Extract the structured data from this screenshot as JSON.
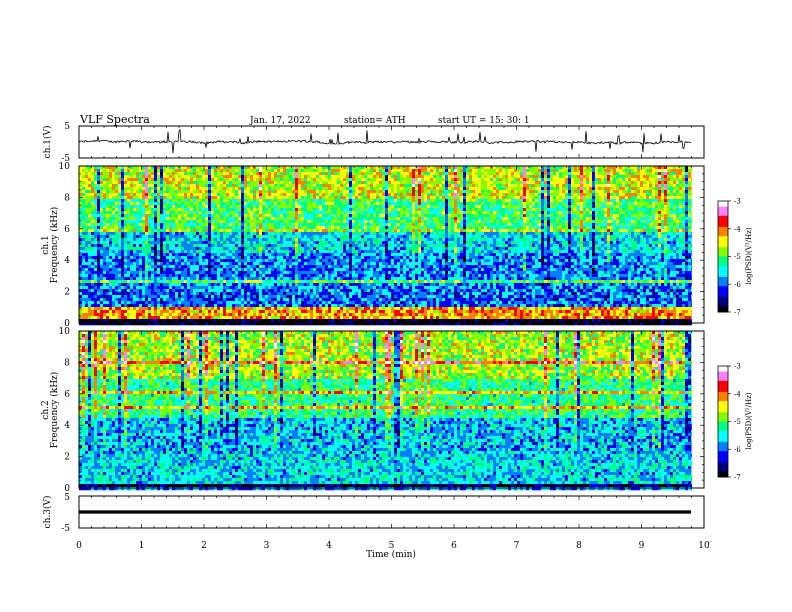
{
  "header": {
    "title": "VLF  Spectra",
    "date": "Jan. 17, 2022",
    "station": "station= ATH",
    "start": "start  UT  =    15: 30: 1"
  },
  "colors": {
    "colormap": [
      "#000000",
      "#00007f",
      "#0000ff",
      "#0080ff",
      "#00ffff",
      "#00ff80",
      "#80ff00",
      "#ffff00",
      "#ff8000",
      "#ff0000",
      "#ff80ff",
      "#ffffff"
    ]
  },
  "chart_data": [
    {
      "type": "line",
      "panel": "ch1-waveform",
      "ylabel": "ch.1(V)",
      "ylim": [
        -5,
        5
      ],
      "y_ticks": [
        "5",
        "-5"
      ],
      "x_range": [
        0,
        10
      ],
      "trace": "noisy waveform near 0 V (about -0.6 to +0.8 V) with frequent short positive and negative spikes",
      "data_end_min": 9.8
    },
    {
      "type": "heatmap",
      "panel": "ch1-spectrogram",
      "ylabel": "ch.1\nFrequency  (kHz)",
      "ylim": [
        0,
        10
      ],
      "y_ticks": [
        "0",
        "2",
        "4",
        "6",
        "8",
        "10"
      ],
      "x_range": [
        0,
        10
      ],
      "data_end_min": 9.8,
      "colorbar": {
        "label": "log(PSD)(V²/Hz)",
        "range": [
          -7,
          -3
        ],
        "ticks": [
          "-3",
          "-4",
          "-5",
          "-6",
          "-7"
        ]
      },
      "description_bands": [
        {
          "freq_khz": [
            0,
            0.4
          ],
          "logpsd": -6.9
        },
        {
          "freq_khz": [
            0.4,
            1.2
          ],
          "logpsd": -4.2
        },
        {
          "freq_khz": [
            1.2,
            2.2
          ],
          "logpsd": -6.0
        },
        {
          "freq_khz": [
            2.2,
            4.5
          ],
          "logpsd": -5.9
        },
        {
          "freq_khz": [
            4.5,
            6.0
          ],
          "logpsd": -5.6
        },
        {
          "freq_khz": [
            6.0,
            8.0
          ],
          "logpsd": -5.1
        },
        {
          "freq_khz": [
            8.0,
            10.0
          ],
          "logpsd": -4.6
        }
      ]
    },
    {
      "type": "heatmap",
      "panel": "ch2-spectrogram",
      "ylabel": "ch.2\nFrequency  (kHz)",
      "ylim": [
        0,
        10
      ],
      "y_ticks": [
        "0",
        "2",
        "4",
        "6",
        "8",
        "10"
      ],
      "x_range": [
        0,
        10
      ],
      "data_end_min": 9.8,
      "colorbar": {
        "label": "log(PSD)(V²/Hz)",
        "range": [
          -7,
          -3
        ],
        "ticks": [
          "-3",
          "-4",
          "-5",
          "-6",
          "-7"
        ]
      },
      "description_bands": [
        {
          "freq_khz": [
            0,
            0.3
          ],
          "logpsd": -6.8
        },
        {
          "freq_khz": [
            0.3,
            2.2
          ],
          "logpsd": -5.6
        },
        {
          "freq_khz": [
            2.2,
            4.5
          ],
          "logpsd": -5.7
        },
        {
          "freq_khz": [
            4.5,
            7.0
          ],
          "logpsd": -5.2
        },
        {
          "freq_khz": [
            7.0,
            10.0
          ],
          "logpsd": -4.7
        }
      ]
    },
    {
      "type": "line",
      "panel": "ch3-waveform",
      "ylabel": "ch.3(V)",
      "ylim": [
        -5,
        5
      ],
      "y_ticks": [
        "5",
        "-5"
      ],
      "x_range": [
        0,
        10
      ],
      "trace": "nearly constant thick trace at about 0 V",
      "data_end_min": 9.8
    }
  ],
  "x_axis": {
    "label": "Time  (min)",
    "range": [
      0,
      10
    ],
    "ticks": [
      "0",
      "1",
      "2",
      "3",
      "4",
      "5",
      "6",
      "7",
      "8",
      "9",
      "10"
    ]
  }
}
